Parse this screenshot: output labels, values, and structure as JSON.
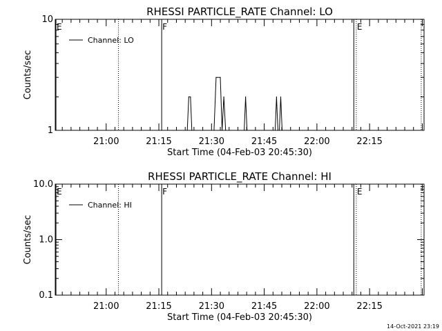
{
  "footer_timestamp": "14-Oct-2021 23:19",
  "chart_data": [
    {
      "type": "line",
      "title": "RHESSI PARTICLE_RATE Channel: LO",
      "xlabel": "Start Time (04-Feb-03 20:45:30)",
      "ylabel": "Counts/sec",
      "yscale": "log",
      "ylim": [
        1,
        10
      ],
      "y_ticks": [
        {
          "value": 1,
          "label": "1"
        },
        {
          "value": 10,
          "label": "10"
        }
      ],
      "xlim_minutes": [
        0,
        105
      ],
      "x_ticks": [
        {
          "value": 14.5,
          "label": "21:00"
        },
        {
          "value": 29.5,
          "label": "21:15"
        },
        {
          "value": 44.5,
          "label": "21:30"
        },
        {
          "value": 59.5,
          "label": "21:45"
        },
        {
          "value": 74.5,
          "label": "22:00"
        },
        {
          "value": 89.5,
          "label": "22:15"
        }
      ],
      "legend": {
        "label": "Channel: LO",
        "position": "top-left"
      },
      "event_markers": [
        {
          "x": 0.2,
          "style": "solid",
          "label": "E"
        },
        {
          "x": 18.0,
          "style": "dotted",
          "label": ""
        },
        {
          "x": 30.3,
          "style": "solid",
          "label": "F"
        },
        {
          "x": 85.0,
          "style": "solid",
          "label": ""
        },
        {
          "x": 85.7,
          "style": "dotted",
          "label": "E"
        },
        {
          "x": 104.2,
          "style": "dotted",
          "label": ""
        }
      ],
      "series": [
        {
          "name": "Channel: LO",
          "points": [
            [
              37.6,
              1
            ],
            [
              38.0,
              2
            ],
            [
              38.5,
              2
            ],
            [
              38.9,
              1
            ],
            [
              45.2,
              1
            ],
            [
              45.8,
              3
            ],
            [
              47.0,
              3
            ],
            [
              47.5,
              1
            ],
            [
              48.0,
              2
            ],
            [
              48.5,
              1
            ],
            [
              53.8,
              1
            ],
            [
              54.2,
              2
            ],
            [
              54.6,
              1
            ],
            [
              62.6,
              1
            ],
            [
              63.0,
              2
            ],
            [
              63.4,
              1
            ],
            [
              63.8,
              1
            ],
            [
              64.2,
              2
            ],
            [
              64.6,
              1
            ]
          ]
        }
      ]
    },
    {
      "type": "line",
      "title": "RHESSI PARTICLE_RATE Channel: HI",
      "xlabel": "Start Time (04-Feb-03 20:45:30)",
      "ylabel": "Counts/sec",
      "yscale": "log",
      "ylim": [
        0.1,
        10
      ],
      "y_ticks": [
        {
          "value": 0.1,
          "label": "0.1"
        },
        {
          "value": 1,
          "label": "1.0"
        },
        {
          "value": 10,
          "label": "10.0"
        }
      ],
      "xlim_minutes": [
        0,
        105
      ],
      "x_ticks": [
        {
          "value": 14.5,
          "label": "21:00"
        },
        {
          "value": 29.5,
          "label": "21:15"
        },
        {
          "value": 44.5,
          "label": "21:30"
        },
        {
          "value": 59.5,
          "label": "21:45"
        },
        {
          "value": 74.5,
          "label": "22:00"
        },
        {
          "value": 89.5,
          "label": "22:15"
        }
      ],
      "legend": {
        "label": "Channel: HI",
        "position": "top-left"
      },
      "event_markers": [
        {
          "x": 0.2,
          "style": "solid",
          "label": "E"
        },
        {
          "x": 18.0,
          "style": "dotted",
          "label": ""
        },
        {
          "x": 30.3,
          "style": "solid",
          "label": "F"
        },
        {
          "x": 85.0,
          "style": "solid",
          "label": ""
        },
        {
          "x": 85.7,
          "style": "dotted",
          "label": "E"
        },
        {
          "x": 104.2,
          "style": "dotted",
          "label": ""
        }
      ],
      "series": [
        {
          "name": "Channel: HI",
          "points": []
        }
      ]
    }
  ]
}
